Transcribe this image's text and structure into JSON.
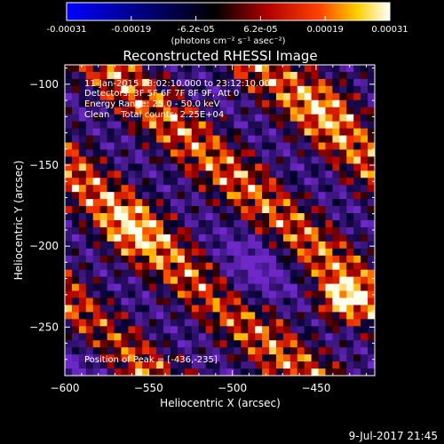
{
  "colorbar": {
    "ticks": [
      "-0.00031",
      "-0.00019",
      "-6.2e-05",
      "6.2e-05",
      "0.00019",
      "0.00031"
    ],
    "unit_label": "(photons cm⁻² s⁻¹ asec⁻²)",
    "range": [
      -0.00031,
      0.00031
    ]
  },
  "chart_data": {
    "type": "heatmap",
    "title": "Reconstructed RHESSI Image",
    "xlabel": "Heliocentric X (arcsec)",
    "ylabel": "Heliocentric Y (arcsec)",
    "xlim": [
      -600,
      -415
    ],
    "ylim": [
      -280,
      -88
    ],
    "x_ticks": [
      -600,
      -550,
      -500,
      -450
    ],
    "y_ticks": [
      -100,
      -150,
      -200,
      -250
    ],
    "x_tick_labels": [
      "−600",
      "−550",
      "−500",
      "−450"
    ],
    "y_tick_labels": [
      "−100",
      "−150",
      "−200",
      "−250"
    ],
    "peak": [
      -436,
      -235
    ],
    "annotations": [
      "11-Jan-2015 23:02:10.000 to 23:12:10.000",
      "Detectors: 3F 5F 6F 7F 8F 9F, Att 0",
      "Energy Range: 25.0 - 50.0 keV",
      "Clean    Total counts: 2.25E+04"
    ],
    "peak_label": "Position of Peak = [-436,-235]",
    "colormap": "blue-black-red-yellow-white",
    "grid": false
  },
  "footer": {
    "date": "9-Jul-2017 21:45"
  }
}
